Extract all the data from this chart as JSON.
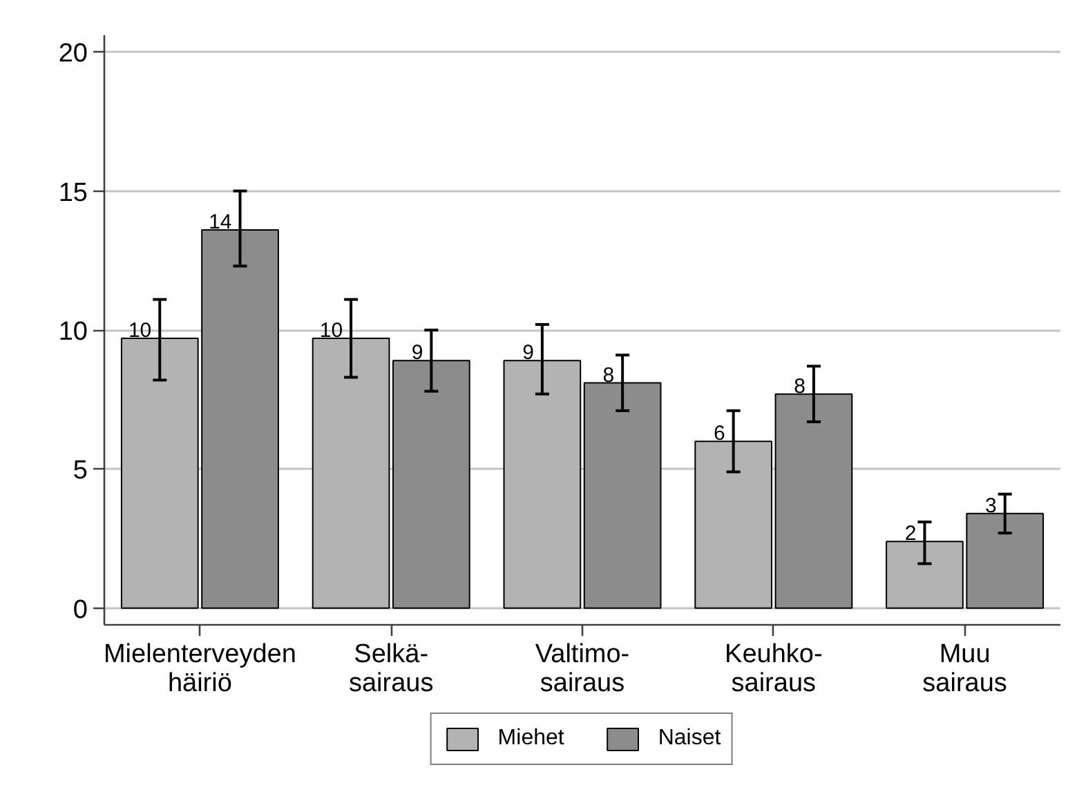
{
  "chart_data": {
    "type": "bar",
    "categories": [
      "Mielenterveyden\nhäiriö",
      "Selkä-\nsairaus",
      "Valtimo-\nsairaus",
      "Keuhko-\nsairaus",
      "Muu\nsairaus"
    ],
    "series": [
      {
        "name": "Miehet",
        "color": "#b3b3b3",
        "values": [
          9.7,
          9.7,
          8.9,
          6.0,
          2.4
        ],
        "errors": [
          [
            8.2,
            11.1
          ],
          [
            8.3,
            11.1
          ],
          [
            7.7,
            10.2
          ],
          [
            4.9,
            7.1
          ],
          [
            1.6,
            3.1
          ]
        ],
        "value_labels": [
          "10",
          "10",
          "9",
          "6",
          "2"
        ]
      },
      {
        "name": "Naiset",
        "color": "#8c8c8c",
        "values": [
          13.6,
          8.9,
          8.1,
          7.7,
          3.4
        ],
        "errors": [
          [
            12.3,
            15.0
          ],
          [
            7.8,
            10.0
          ],
          [
            7.1,
            9.1
          ],
          [
            6.7,
            8.7
          ],
          [
            2.7,
            4.1
          ]
        ],
        "value_labels": [
          "14",
          "9",
          "8",
          "8",
          "3"
        ]
      }
    ],
    "ylim": [
      -0.6,
      20.6
    ],
    "yticks": [
      0,
      5,
      10,
      15,
      20
    ],
    "grid": "y",
    "legend": "bottom"
  }
}
